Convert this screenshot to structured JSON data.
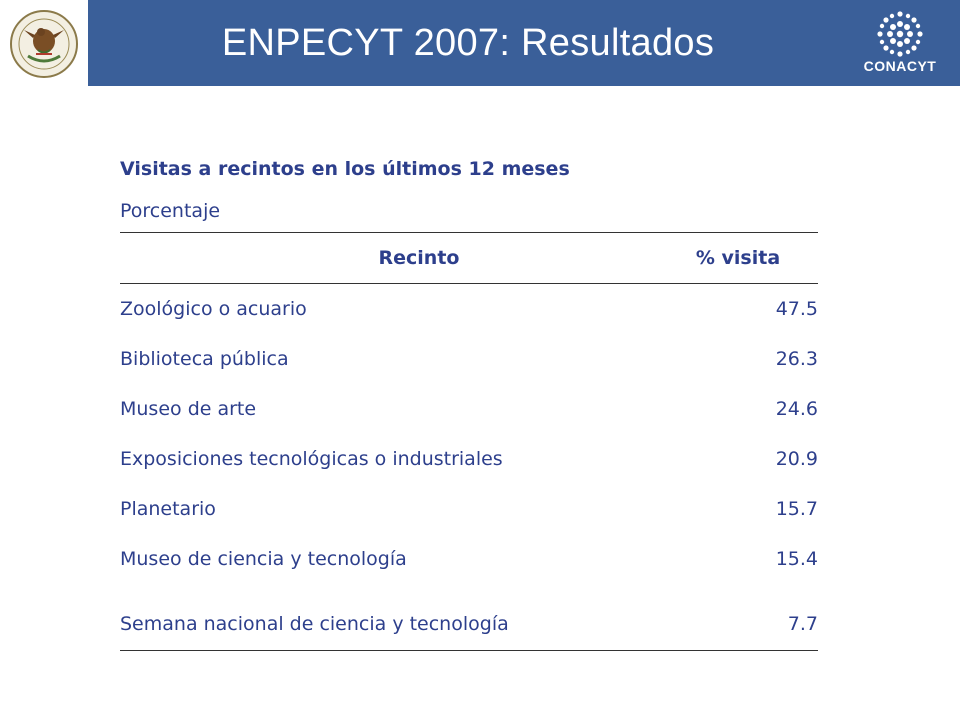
{
  "header": {
    "title": "ENPECYT 2007: Resultados",
    "brand_color": "#3a5f99",
    "left_logo": "mexico-coat-of-arms",
    "right_logo": "conacyt-logo",
    "right_logo_text": "CONACYT"
  },
  "table": {
    "title": "Visitas a recintos en los últimos 12 meses",
    "subtitle": "Porcentaje",
    "columns": [
      "Recinto",
      "% visita"
    ],
    "rows": [
      {
        "name": "Zoológico o acuario",
        "value": "47.5"
      },
      {
        "name": "Biblioteca pública",
        "value": "26.3"
      },
      {
        "name": "Museo de arte",
        "value": "24.6"
      },
      {
        "name": "Exposiciones tecnológicas o industriales",
        "value": "20.9"
      },
      {
        "name": "Planetario",
        "value": "15.7"
      },
      {
        "name": "Museo de ciencia y tecnología",
        "value": "15.4"
      },
      {
        "name": "Semana nacional de ciencia y tecnología",
        "value": "7.7"
      }
    ],
    "text_color": "#2d3f8c"
  }
}
